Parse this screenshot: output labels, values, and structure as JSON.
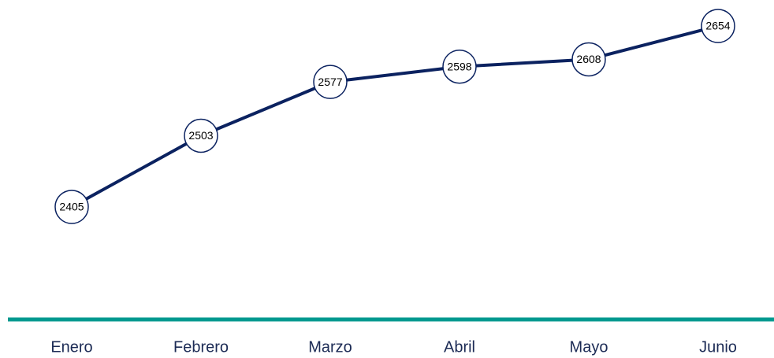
{
  "chart_data": {
    "type": "line",
    "categories": [
      "Enero",
      "Febrero",
      "Marzo",
      "Abril",
      "Mayo",
      "Junio"
    ],
    "values": [
      2405,
      2503,
      2577,
      2598,
      2608,
      2654
    ],
    "color": "#0b2260",
    "baseline_color": "#00998f"
  }
}
